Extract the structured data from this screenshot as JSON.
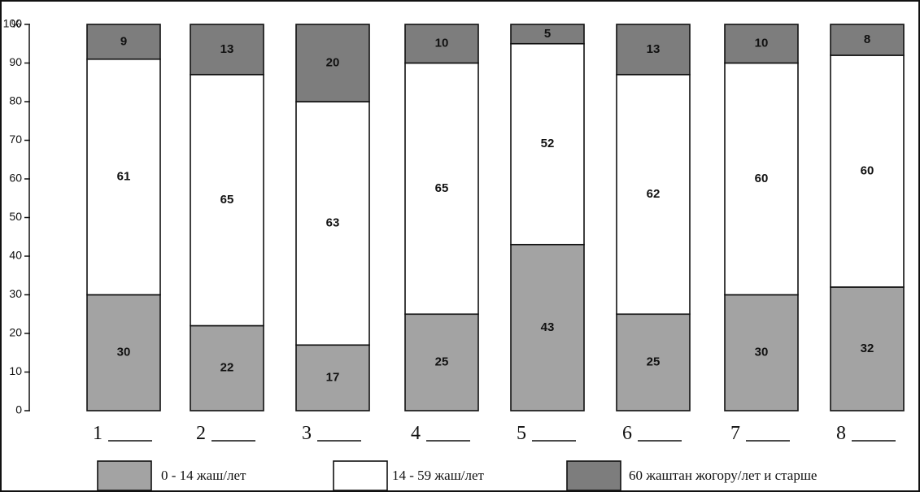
{
  "chart_data": {
    "type": "bar",
    "stacked": true,
    "y_unit": "%",
    "categories": [
      "1",
      "2",
      "3",
      "4",
      "5",
      "6",
      "7",
      "8"
    ],
    "series": [
      {
        "name": "0 - 14 жаш/лет",
        "color": "#a3a3a3",
        "values": [
          30,
          22,
          17,
          25,
          43,
          25,
          30,
          32
        ]
      },
      {
        "name": "14 - 59 жаш/лет",
        "color": "#ffffff",
        "values": [
          61,
          65,
          63,
          65,
          52,
          62,
          60,
          60
        ]
      },
      {
        "name": "60 жаштан жогору/лет и старше",
        "color": "#7d7d7d",
        "values": [
          9,
          13,
          20,
          10,
          5,
          13,
          10,
          8
        ]
      }
    ],
    "ylim": [
      0,
      100
    ],
    "yticks": [
      0,
      10,
      20,
      30,
      40,
      50,
      60,
      70,
      80,
      90,
      100
    ],
    "grid": false,
    "legend_position": "bottom",
    "category_suffix": "_____"
  }
}
